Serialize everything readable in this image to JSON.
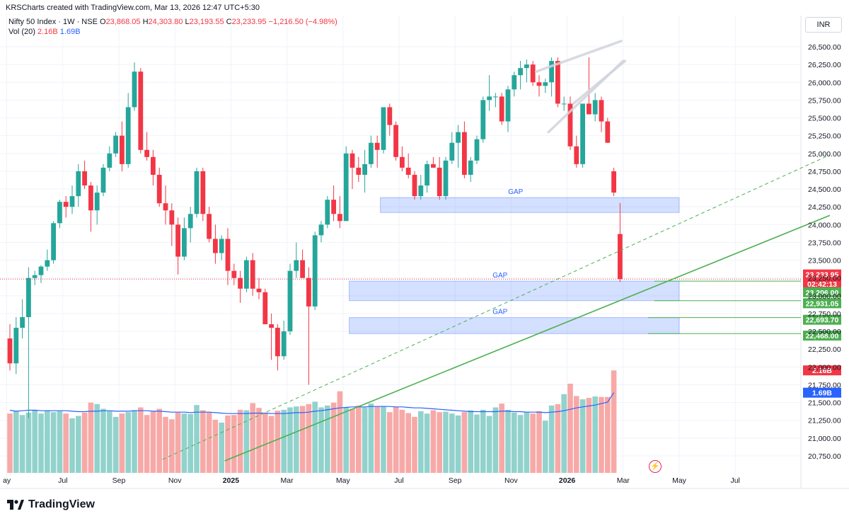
{
  "header": {
    "attribution": "KRSCharts created with TradingView.com, Mar 13, 2026 12:47 UTC+5:30",
    "currency": "INR",
    "brand": "TradingView"
  },
  "legend": {
    "symbol": "Nifty 50 Index · 1W · NSE",
    "o_label": "O",
    "o_value": "23,868.05",
    "h_label": "H",
    "h_value": "24,303.80",
    "l_label": "L",
    "l_value": "23,193.55",
    "c_label": "C",
    "c_value": "23,233.95",
    "change": "−1,216.50 (−4.98%)"
  },
  "volume_legend": {
    "label": "Vol (20)",
    "value": "2.16B",
    "ma": "1.69B"
  },
  "colors": {
    "up": "#26a69a",
    "down": "#f23645",
    "volume_up": "#92d2cc",
    "volume_down": "#f7a9a7",
    "volume_ma": "#2962ff",
    "trendline": "#4caf50",
    "gap_fill": "#2962ff"
  },
  "chart_data": {
    "type": "candlestick",
    "symbol": "Nifty 50 Index",
    "timeframe": "1W",
    "exchange": "NSE",
    "ylim": [
      20600,
      26650
    ],
    "y_ticks": [
      20750,
      21000,
      21250,
      21500,
      21750,
      22000,
      22250,
      22500,
      22750,
      23000,
      23250,
      23500,
      23750,
      24000,
      24250,
      24500,
      24750,
      25000,
      25250,
      25500,
      25750,
      26000,
      26250,
      26500
    ],
    "y_tick_labels": [
      "20,750.00",
      "21,000.00",
      "21,250.00",
      "21,500.00",
      "21,750.00",
      "22,000.00",
      "22,250.00",
      "22,500.00",
      "22,750.00",
      "23,000.00",
      "23,250.00",
      "23,500.00",
      "23,750.00",
      "24,000.00",
      "24,250.00",
      "24,500.00",
      "24,750.00",
      "25,000.00",
      "25,250.00",
      "25,500.00",
      "25,750.00",
      "26,000.00",
      "26,250.00",
      "26,500.00"
    ],
    "x_labels": [
      {
        "week": -0.5,
        "text": "ay",
        "bold": false
      },
      {
        "week": 8.5,
        "text": "Jul",
        "bold": false
      },
      {
        "week": 17.5,
        "text": "Sep",
        "bold": false
      },
      {
        "week": 26.5,
        "text": "Nov",
        "bold": false
      },
      {
        "week": 35.5,
        "text": "2025",
        "bold": true
      },
      {
        "week": 44.5,
        "text": "Mar",
        "bold": false
      },
      {
        "week": 53.5,
        "text": "May",
        "bold": false
      },
      {
        "week": 62.5,
        "text": "Jul",
        "bold": false
      },
      {
        "week": 71.5,
        "text": "Sep",
        "bold": false
      },
      {
        "week": 80.5,
        "text": "Nov",
        "bold": false
      },
      {
        "week": 89.5,
        "text": "2026",
        "bold": true
      },
      {
        "week": 98.5,
        "text": "Mar",
        "bold": false
      },
      {
        "week": 107.5,
        "text": "May",
        "bold": false
      },
      {
        "week": 116.5,
        "text": "Jul",
        "bold": false
      }
    ],
    "ohlc": [
      [
        22400,
        22600,
        21950,
        22050
      ],
      [
        22050,
        22700,
        21900,
        22550
      ],
      [
        22550,
        22950,
        22400,
        22700
      ],
      [
        22700,
        23400,
        21280,
        23250
      ],
      [
        23250,
        23350,
        23150,
        23290
      ],
      [
        23290,
        23430,
        23180,
        23410
      ],
      [
        23410,
        23650,
        23350,
        23500
      ],
      [
        23500,
        24050,
        23450,
        24020
      ],
      [
        24020,
        24350,
        23950,
        24320
      ],
      [
        24320,
        24400,
        24100,
        24250
      ],
      [
        24250,
        24550,
        24150,
        24400
      ],
      [
        24400,
        24850,
        24250,
        24750
      ],
      [
        24750,
        24900,
        24500,
        24550
      ],
      [
        24550,
        24600,
        23900,
        24200
      ],
      [
        24200,
        24550,
        24000,
        24450
      ],
      [
        24450,
        24850,
        24400,
        24800
      ],
      [
        24800,
        25100,
        24750,
        25000
      ],
      [
        25000,
        25300,
        24950,
        25250
      ],
      [
        25250,
        25450,
        24750,
        24850
      ],
      [
        24850,
        25850,
        24800,
        25650
      ],
      [
        25650,
        26280,
        25600,
        26150
      ],
      [
        26150,
        26200,
        25000,
        25050
      ],
      [
        25050,
        25300,
        24900,
        24950
      ],
      [
        24950,
        25050,
        24550,
        24700
      ],
      [
        24700,
        24800,
        24250,
        24300
      ],
      [
        24300,
        24550,
        24000,
        24200
      ],
      [
        24200,
        24300,
        23700,
        24000
      ],
      [
        24000,
        24100,
        23300,
        23550
      ],
      [
        23550,
        24100,
        23500,
        23950
      ],
      [
        23950,
        24250,
        23750,
        24150
      ],
      [
        24150,
        24800,
        24100,
        24750
      ],
      [
        24750,
        24800,
        24050,
        24150
      ],
      [
        24150,
        24250,
        23750,
        23800
      ],
      [
        23800,
        24000,
        23450,
        23600
      ],
      [
        23600,
        23850,
        23500,
        23800
      ],
      [
        23800,
        23950,
        23150,
        23350
      ],
      [
        23350,
        23450,
        23150,
        23250
      ],
      [
        23250,
        23350,
        22900,
        23100
      ],
      [
        23100,
        23550,
        23050,
        23500
      ],
      [
        23500,
        23600,
        23000,
        23100
      ],
      [
        23100,
        23250,
        22950,
        23050
      ],
      [
        23050,
        23100,
        22600,
        22600
      ],
      [
        22600,
        22750,
        22100,
        22550
      ],
      [
        22550,
        22600,
        21950,
        22150
      ],
      [
        22150,
        22650,
        22100,
        22500
      ],
      [
        22500,
        23450,
        22450,
        23350
      ],
      [
        23350,
        23750,
        23250,
        23500
      ],
      [
        23500,
        23650,
        23250,
        23250
      ],
      [
        23250,
        23400,
        21750,
        22850
      ],
      [
        22850,
        23900,
        22800,
        23850
      ],
      [
        23850,
        24050,
        23750,
        24000
      ],
      [
        24000,
        24400,
        23950,
        24350
      ],
      [
        24350,
        24550,
        24050,
        24150
      ],
      [
        24150,
        24400,
        23950,
        24050
      ],
      [
        24050,
        25100,
        24050,
        25000
      ],
      [
        25000,
        25050,
        24500,
        24800
      ],
      [
        24800,
        24950,
        24600,
        24700
      ],
      [
        24700,
        25050,
        24450,
        24850
      ],
      [
        24850,
        25250,
        24800,
        25150
      ],
      [
        25150,
        25250,
        24800,
        25050
      ],
      [
        25050,
        25650,
        25000,
        25650
      ],
      [
        25650,
        25700,
        25250,
        25400
      ],
      [
        25400,
        25450,
        24900,
        24950
      ],
      [
        24950,
        25100,
        24750,
        24800
      ],
      [
        24800,
        25000,
        24650,
        24700
      ],
      [
        24700,
        24750,
        24350,
        24400
      ],
      [
        24400,
        24700,
        24350,
        24550
      ],
      [
        24550,
        24900,
        24450,
        24850
      ],
      [
        24850,
        24950,
        24800,
        24800
      ],
      [
        24800,
        24950,
        24350,
        24400
      ],
      [
        24400,
        24950,
        24350,
        24900
      ],
      [
        24900,
        25300,
        24850,
        25150
      ],
      [
        25150,
        25400,
        24800,
        25300
      ],
      [
        25300,
        25450,
        24650,
        24700
      ],
      [
        24700,
        24950,
        24600,
        24900
      ],
      [
        24900,
        25250,
        24850,
        25200
      ],
      [
        25200,
        25800,
        25150,
        25750
      ],
      [
        25750,
        26100,
        25600,
        25800
      ],
      [
        25800,
        25850,
        25650,
        25800
      ],
      [
        25800,
        25850,
        25400,
        25450
      ],
      [
        25450,
        25950,
        25300,
        25900
      ],
      [
        25900,
        26150,
        25800,
        26100
      ],
      [
        26100,
        26300,
        25900,
        26200
      ],
      [
        26200,
        26320,
        26000,
        26250
      ],
      [
        26250,
        26300,
        25950,
        26000
      ],
      [
        26000,
        26100,
        25800,
        25950
      ],
      [
        25950,
        26050,
        25850,
        26000
      ],
      [
        26000,
        26350,
        25800,
        26300
      ],
      [
        26300,
        26350,
        25650,
        25700
      ],
      [
        25700,
        25800,
        25600,
        25700
      ],
      [
        25700,
        25800,
        25050,
        25100
      ],
      [
        25100,
        25250,
        24800,
        24850
      ],
      [
        24850,
        25700,
        24800,
        25700
      ],
      [
        25700,
        26350,
        25550,
        25550
      ],
      [
        25550,
        25850,
        25450,
        25750
      ],
      [
        25750,
        25800,
        25300,
        25450
      ],
      [
        25450,
        25500,
        25150,
        25150
      ],
      [
        24750,
        24800,
        24400,
        24450
      ],
      [
        23868.05,
        24303.8,
        23193.55,
        23233.95
      ]
    ],
    "volume": [
      1.25,
      1.3,
      1.22,
      1.27,
      1.33,
      1.25,
      1.32,
      1.28,
      1.3,
      1.25,
      1.15,
      1.2,
      1.27,
      1.48,
      1.45,
      1.35,
      1.3,
      1.18,
      1.25,
      1.28,
      1.32,
      1.38,
      1.22,
      1.29,
      1.35,
      1.18,
      1.13,
      1.27,
      1.25,
      1.24,
      1.43,
      1.32,
      1.28,
      1.12,
      1.06,
      1.21,
      1.22,
      1.33,
      1.32,
      1.47,
      1.37,
      1.27,
      1.2,
      1.31,
      1.33,
      1.38,
      1.4,
      1.41,
      1.45,
      1.5,
      1.38,
      1.42,
      1.48,
      1.72,
      1.38,
      1.35,
      1.42,
      1.38,
      1.46,
      1.4,
      1.41,
      1.28,
      1.39,
      1.33,
      1.26,
      1.18,
      1.3,
      1.25,
      1.32,
      1.28,
      1.29,
      1.25,
      1.21,
      1.28,
      1.32,
      1.23,
      1.33,
      1.2,
      1.38,
      1.46,
      1.33,
      1.27,
      1.22,
      1.28,
      1.25,
      1.3,
      1.1,
      1.42,
      1.45,
      1.66,
      1.88,
      1.62,
      1.55,
      1.58,
      1.61,
      1.6,
      1.6,
      2.16
    ],
    "volume_ma_series": [
      1.32,
      1.3,
      1.31,
      1.32,
      1.32,
      1.31,
      1.31,
      1.31,
      1.31,
      1.31,
      1.3,
      1.29,
      1.29,
      1.3,
      1.3,
      1.31,
      1.31,
      1.3,
      1.3,
      1.3,
      1.31,
      1.31,
      1.31,
      1.3,
      1.3,
      1.29,
      1.28,
      1.28,
      1.28,
      1.27,
      1.28,
      1.28,
      1.28,
      1.27,
      1.26,
      1.25,
      1.25,
      1.25,
      1.25,
      1.26,
      1.26,
      1.26,
      1.25,
      1.25,
      1.25,
      1.26,
      1.27,
      1.27,
      1.28,
      1.3,
      1.31,
      1.33,
      1.35,
      1.37,
      1.38,
      1.39,
      1.39,
      1.39,
      1.4,
      1.4,
      1.4,
      1.4,
      1.39,
      1.39,
      1.38,
      1.37,
      1.37,
      1.36,
      1.35,
      1.34,
      1.33,
      1.32,
      1.31,
      1.3,
      1.29,
      1.29,
      1.29,
      1.29,
      1.29,
      1.3,
      1.3,
      1.29,
      1.29,
      1.28,
      1.28,
      1.28,
      1.27,
      1.28,
      1.29,
      1.31,
      1.34,
      1.37,
      1.39,
      1.41,
      1.43,
      1.46,
      1.49,
      1.69
    ],
    "volume_axis_max": 4.0,
    "gaps": [
      {
        "label": "GAP",
        "from": 24170,
        "to": 24380,
        "start_week": 59.5,
        "end_week": 107.5
      },
      {
        "label": "GAP",
        "from": 22931.05,
        "to": 23206,
        "start_week": 54.5,
        "end_week": 107.5
      },
      {
        "label": "GAP",
        "from": 22468,
        "to": 22693.7,
        "start_week": 54.5,
        "end_week": 107.5
      }
    ],
    "trendlines": [
      {
        "style": "solid",
        "p1": {
          "week": 34.5,
          "price": 20680
        },
        "p2": {
          "week": 131.7,
          "price": 24130
        }
      },
      {
        "style": "dashed",
        "p1": {
          "week": 24.5,
          "price": 20700
        },
        "p2": {
          "week": 131.7,
          "price": 24980
        }
      }
    ],
    "channel_lines": [
      {
        "p1": {
          "week": 84.5,
          "price": 26150
        },
        "p2": {
          "week": 98.2,
          "price": 26580
        }
      },
      {
        "p1": {
          "week": 86.5,
          "price": 25300
        },
        "p2": {
          "week": 98.5,
          "price": 26300
        }
      },
      {
        "p1": {
          "week": 90.5,
          "price": 25700
        },
        "p2": {
          "week": 98.8,
          "price": 26300
        }
      }
    ],
    "horizontal_levels": [
      {
        "price": 23206,
        "from_week": 103.5
      },
      {
        "price": 22931.05,
        "from_week": 103.5
      },
      {
        "price": 22693.7,
        "from_week": 102.5
      },
      {
        "price": 22468,
        "from_week": 102.5
      }
    ],
    "last_price_line": 23233.95,
    "price_labels": [
      {
        "text": "23,233.95",
        "price": 23300,
        "color": "#f23645"
      },
      {
        "text": "02:42:13",
        "price": 23165,
        "color": "#f23645"
      },
      {
        "text": "23,206.00",
        "price": 23050,
        "color": "#4caf50"
      },
      {
        "text": "22,931.05",
        "price": 22895,
        "color": "#4caf50"
      },
      {
        "text": "22,693.70",
        "price": 22663,
        "color": "#4caf50"
      },
      {
        "text": "22,468.00",
        "price": 22440,
        "color": "#4caf50"
      },
      {
        "text": "2.16B",
        "volume": 2.16,
        "color": "#f23645"
      },
      {
        "text": "1.69B",
        "volume": 1.69,
        "color": "#2962ff"
      }
    ]
  }
}
